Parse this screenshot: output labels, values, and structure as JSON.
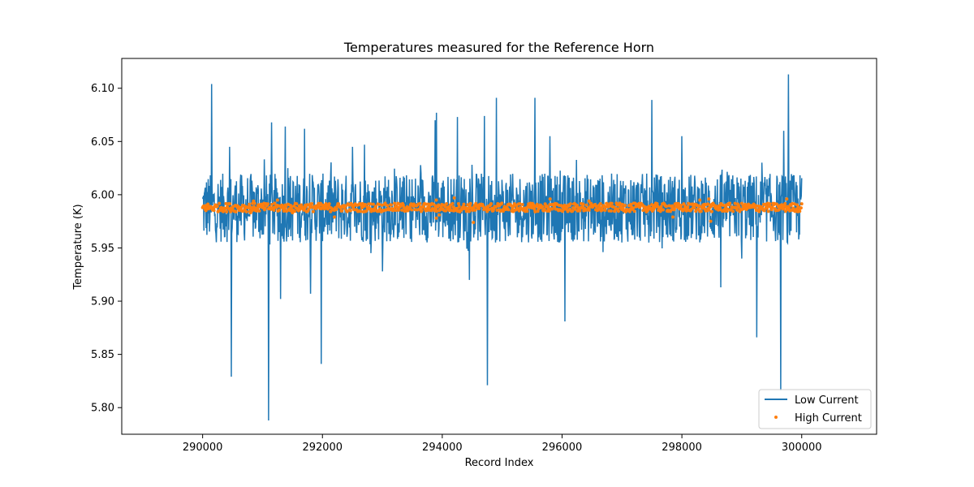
{
  "chart_data": {
    "type": "line",
    "title": "Temperatures measured for the Reference Horn",
    "xlabel": "Record Index",
    "ylabel": "Temperature (K)",
    "xlim": [
      288650,
      301250
    ],
    "ylim": [
      5.775,
      6.128
    ],
    "xticks": [
      290000,
      292000,
      294000,
      296000,
      298000,
      300000
    ],
    "yticks": [
      5.8,
      5.85,
      5.9,
      5.95,
      6.0,
      6.05,
      6.1
    ],
    "xtick_labels": [
      "290000",
      "292000",
      "294000",
      "296000",
      "298000",
      "300000"
    ],
    "ytick_labels": [
      "5.80",
      "5.85",
      "5.90",
      "5.95",
      "6.00",
      "6.05",
      "6.10"
    ],
    "legend_position": "lower-right",
    "series": [
      {
        "name": "Low Current",
        "style": "line",
        "color": "#1f77b4",
        "x_range": [
          290000,
          300000
        ],
        "baseline": 5.989,
        "band": [
          5.955,
          6.02
        ],
        "spikes": [
          {
            "x": 290150,
            "y": 6.104
          },
          {
            "x": 290480,
            "y": 5.829
          },
          {
            "x": 290450,
            "y": 6.045
          },
          {
            "x": 291100,
            "y": 5.788
          },
          {
            "x": 291150,
            "y": 6.068
          },
          {
            "x": 291300,
            "y": 5.902
          },
          {
            "x": 291380,
            "y": 6.064
          },
          {
            "x": 291700,
            "y": 6.062
          },
          {
            "x": 291800,
            "y": 5.907
          },
          {
            "x": 291980,
            "y": 5.841
          },
          {
            "x": 292500,
            "y": 6.045
          },
          {
            "x": 292700,
            "y": 6.047
          },
          {
            "x": 293000,
            "y": 5.928
          },
          {
            "x": 293900,
            "y": 6.077
          },
          {
            "x": 293880,
            "y": 6.07
          },
          {
            "x": 294250,
            "y": 6.073
          },
          {
            "x": 294450,
            "y": 5.92
          },
          {
            "x": 294700,
            "y": 6.074
          },
          {
            "x": 294750,
            "y": 5.821
          },
          {
            "x": 294900,
            "y": 6.091
          },
          {
            "x": 295550,
            "y": 6.091
          },
          {
            "x": 295800,
            "y": 6.055
          },
          {
            "x": 296050,
            "y": 5.881
          },
          {
            "x": 297500,
            "y": 6.089
          },
          {
            "x": 298000,
            "y": 6.055
          },
          {
            "x": 298650,
            "y": 5.913
          },
          {
            "x": 299250,
            "y": 5.866
          },
          {
            "x": 299650,
            "y": 5.816
          },
          {
            "x": 299700,
            "y": 6.06
          },
          {
            "x": 299780,
            "y": 6.113
          },
          {
            "x": 299000,
            "y": 5.94
          }
        ]
      },
      {
        "name": "High Current",
        "style": "scatter",
        "color": "#ff7f0e",
        "x_range": [
          290000,
          300000
        ],
        "baseline": 5.988,
        "band": [
          5.984,
          5.992
        ],
        "outliers": [
          {
            "x": 290800,
            "y": 5.983
          },
          {
            "x": 290850,
            "y": 5.994
          },
          {
            "x": 291250,
            "y": 5.995
          },
          {
            "x": 291500,
            "y": 5.983
          },
          {
            "x": 292200,
            "y": 5.979
          },
          {
            "x": 293900,
            "y": 5.978
          },
          {
            "x": 293950,
            "y": 5.981
          },
          {
            "x": 293900,
            "y": 5.995
          },
          {
            "x": 294200,
            "y": 5.997
          },
          {
            "x": 294520,
            "y": 5.974
          },
          {
            "x": 295800,
            "y": 5.996
          },
          {
            "x": 296450,
            "y": 5.994
          },
          {
            "x": 297850,
            "y": 5.979
          },
          {
            "x": 298300,
            "y": 5.995
          },
          {
            "x": 298450,
            "y": 5.996
          },
          {
            "x": 298480,
            "y": 5.975
          },
          {
            "x": 299750,
            "y": 5.996
          }
        ]
      }
    ]
  }
}
